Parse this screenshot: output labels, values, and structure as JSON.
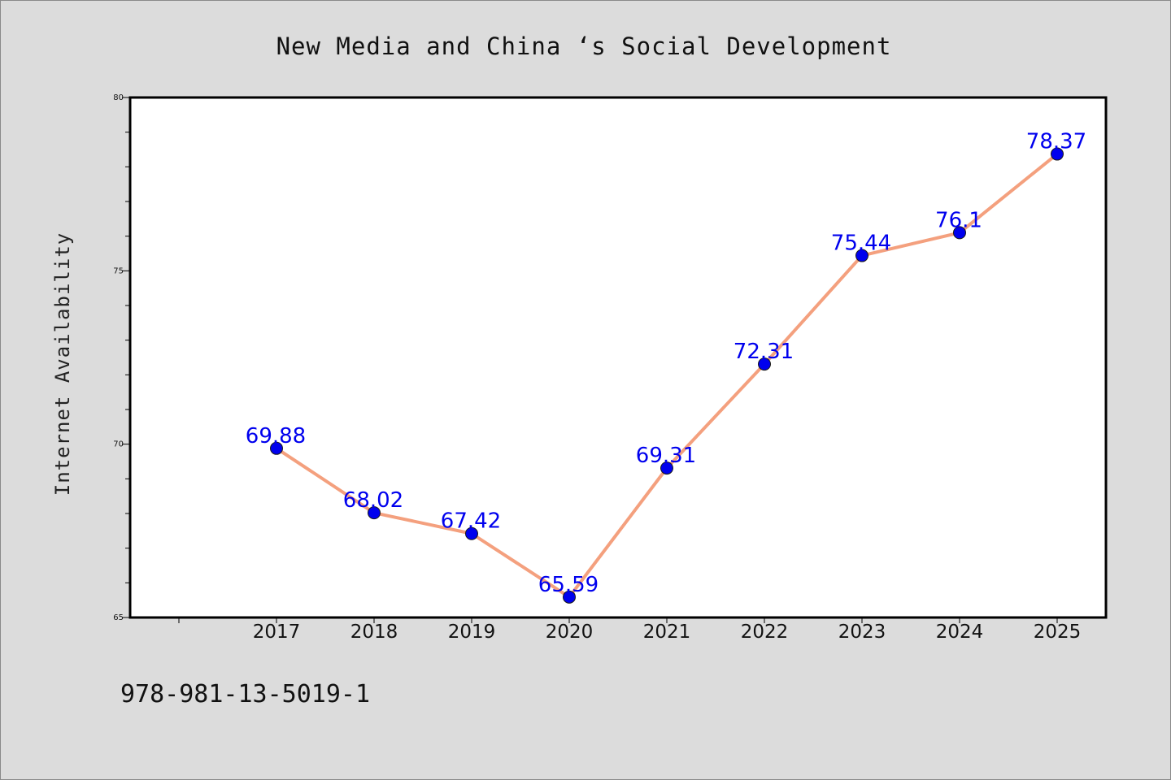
{
  "chart_data": {
    "type": "line",
    "title": "New Media and China ‘s Social Development",
    "ylabel": "Internet Availability",
    "xlabel": "",
    "categories": [
      "2017",
      "2018",
      "2019",
      "2020",
      "2021",
      "2022",
      "2023",
      "2024",
      "2025"
    ],
    "x_axis_extra_leading_tick": true,
    "values": [
      69.88,
      68.02,
      67.42,
      65.59,
      69.31,
      72.31,
      75.44,
      76.1,
      78.37
    ],
    "data_labels": [
      "69.88",
      "68.02",
      "67.42",
      "65.59",
      "69.31",
      "72.31",
      "75.44",
      "76.1",
      "78.37"
    ],
    "ylim": [
      65,
      80
    ],
    "yticks": [
      65,
      70,
      75,
      80
    ],
    "ytick_labels": [
      "65",
      "70",
      "75",
      "80"
    ],
    "y_minor_step": 1,
    "grid": false,
    "legend": false,
    "colors": {
      "line": "#f4a07e",
      "marker": "#0000ee",
      "data_label": "#0000ee",
      "plot_background": "#ffffff",
      "page_background": "#dcdcdc"
    }
  },
  "footnote": "978-981-13-5019-1"
}
